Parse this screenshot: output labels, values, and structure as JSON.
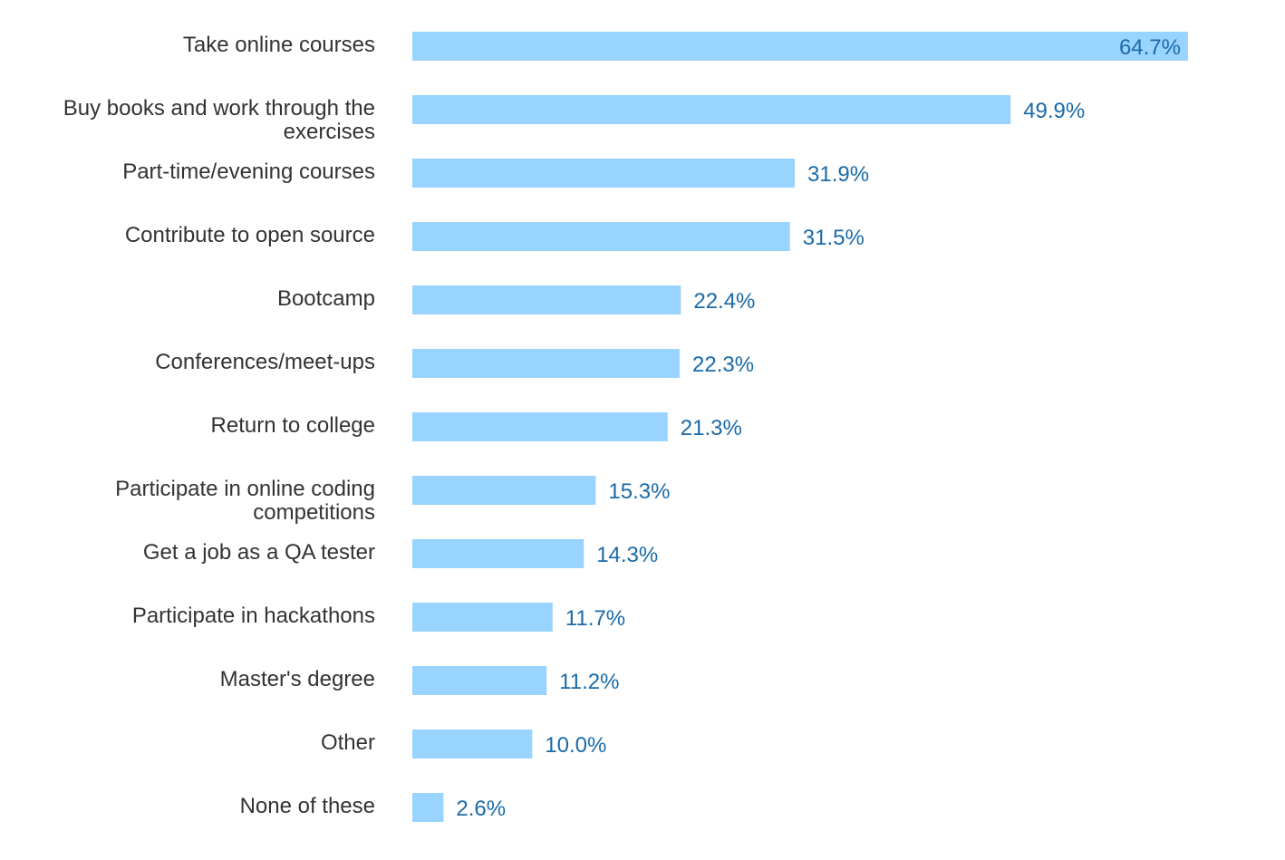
{
  "chart_data": {
    "type": "bar",
    "orientation": "horizontal",
    "categories": [
      "Take online courses",
      "Buy books and work through the exercises",
      "Part-time/evening courses",
      "Contribute to open source",
      "Bootcamp",
      "Conferences/meet-ups",
      "Return to college",
      "Participate in online coding competitions",
      "Get a job as a QA tester",
      "Participate in hackathons",
      "Master's degree",
      "Other",
      "None of these"
    ],
    "category_lines": [
      [
        "Take online courses"
      ],
      [
        "Buy books and work through the",
        "exercises"
      ],
      [
        "Part-time/evening courses"
      ],
      [
        "Contribute to open source"
      ],
      [
        "Bootcamp"
      ],
      [
        "Conferences/meet-ups"
      ],
      [
        "Return to college"
      ],
      [
        "Participate in online coding",
        "competitions"
      ],
      [
        "Get a job as a QA tester"
      ],
      [
        "Participate in hackathons"
      ],
      [
        "Master's degree"
      ],
      [
        "Other"
      ],
      [
        "None of these"
      ]
    ],
    "values": [
      64.7,
      49.9,
      31.9,
      31.5,
      22.4,
      22.3,
      21.3,
      15.3,
      14.3,
      11.7,
      11.2,
      10.0,
      2.6
    ],
    "value_labels": [
      "64.7%",
      "49.9%",
      "31.9%",
      "31.5%",
      "22.4%",
      "22.3%",
      "21.3%",
      "15.3%",
      "14.3%",
      "11.7%",
      "11.2%",
      "10.0%",
      "2.6%"
    ],
    "unit": "%",
    "xlim": [
      0,
      64.7
    ],
    "grid": false,
    "legend": "none",
    "bar_color": "#99d3ff",
    "label_color": "#333333",
    "value_color": "#1a6aa8",
    "title": "",
    "xlabel": "",
    "ylabel": ""
  }
}
